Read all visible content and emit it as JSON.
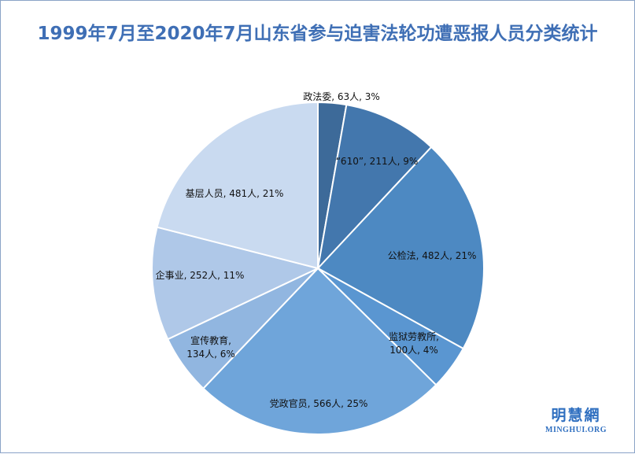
{
  "chart_data": {
    "type": "pie",
    "title": "1999年7月至2020年7月山东省参与迫害法轮功遭恶报人员分类统计",
    "slices": [
      {
        "name": "政法委",
        "count": 63,
        "percent": 3,
        "label_line1": "政法委, 63人, 3%",
        "label_line2": "",
        "color": "#3d6a99"
      },
      {
        "name": "“610”",
        "count": 211,
        "percent": 9,
        "label_line1": "“610”, 211人, 9%",
        "label_line2": "",
        "color": "#4377ad"
      },
      {
        "name": "公检法",
        "count": 482,
        "percent": 21,
        "label_line1": "公检法, 482人, 21%",
        "label_line2": "",
        "color": "#4d89c2"
      },
      {
        "name": "监狱劳教所",
        "count": 100,
        "percent": 4,
        "label_line1": "监狱劳教所,",
        "label_line2": "100人, 4%",
        "color": "#5a96d1"
      },
      {
        "name": "党政官员",
        "count": 566,
        "percent": 25,
        "label_line1": "党政官员, 566人, 25%",
        "label_line2": "",
        "color": "#6fa5da"
      },
      {
        "name": "宣传教育",
        "count": 134,
        "percent": 6,
        "label_line1": "宣传教育,",
        "label_line2": "134人, 6%",
        "color": "#91b6e0"
      },
      {
        "name": "企事业",
        "count": 252,
        "percent": 11,
        "label_line1": "企事业, 252人, 11%",
        "label_line2": "",
        "color": "#afc8e8"
      },
      {
        "name": "基层人员",
        "count": 481,
        "percent": 21,
        "label_line1": "基层人员, 481人, 21%",
        "label_line2": "",
        "color": "#c9daf0"
      }
    ]
  },
  "watermark": {
    "chinese": "明慧網",
    "english": "MINGHUI.ORG"
  }
}
